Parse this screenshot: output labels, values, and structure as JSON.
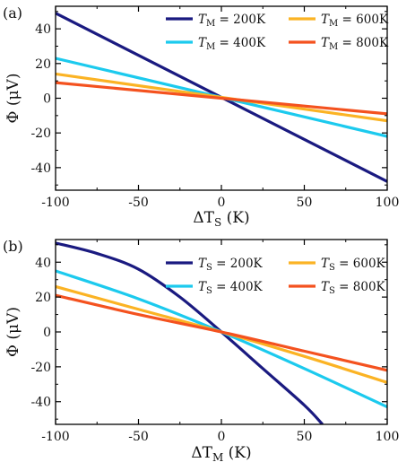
{
  "chart_data": [
    {
      "type": "line",
      "panel_label": "(a)",
      "xlabel": "ΔT_S (K)",
      "xlabel_main": "ΔT",
      "xlabel_sub": "S",
      "xlabel_unit": " (K)",
      "ylabel": "Φ (μV)",
      "ylabel_main": "Φ",
      "ylabel_unit": " (μV)",
      "xlim": [
        -100,
        100
      ],
      "ylim": [
        -53,
        53
      ],
      "xticks": [
        -100,
        -50,
        0,
        50,
        100
      ],
      "xtick_labels": [
        "-100",
        "-50",
        "0",
        "50",
        "100"
      ],
      "yticks": [
        -40,
        -20,
        0,
        20,
        40
      ],
      "ytick_labels": [
        "-40",
        "-20",
        "0",
        "20",
        "40"
      ],
      "grid": false,
      "legend_placement": "top-right",
      "series": [
        {
          "name": "T_M = 200K",
          "label_var": "T",
          "label_sub": "M",
          "label_val": "200K",
          "color": "#1a1a80",
          "x": [
            -100,
            100
          ],
          "y": [
            49,
            -48
          ]
        },
        {
          "name": "T_M = 400K",
          "label_var": "T",
          "label_sub": "M",
          "label_val": "400K",
          "color": "#1ccaee",
          "x": [
            -100,
            100
          ],
          "y": [
            23,
            -22
          ]
        },
        {
          "name": "T_M = 600K",
          "label_var": "T",
          "label_sub": "M",
          "label_val": "600K",
          "color": "#fbb324",
          "x": [
            -100,
            100
          ],
          "y": [
            14,
            -13
          ]
        },
        {
          "name": "T_M = 800K",
          "label_var": "T",
          "label_sub": "M",
          "label_val": "800K",
          "color": "#f4521f",
          "x": [
            -100,
            100
          ],
          "y": [
            9,
            -9
          ]
        }
      ]
    },
    {
      "type": "line",
      "panel_label": "(b)",
      "xlabel": "ΔT_M (K)",
      "xlabel_main": "ΔT",
      "xlabel_sub": "M",
      "xlabel_unit": " (K)",
      "ylabel": "Φ (μV)",
      "ylabel_main": "Φ",
      "ylabel_unit": " (μV)",
      "xlim": [
        -100,
        100
      ],
      "ylim": [
        -53,
        53
      ],
      "xticks": [
        -100,
        -50,
        0,
        50,
        100
      ],
      "xtick_labels": [
        "-100",
        "-50",
        "0",
        "50",
        "100"
      ],
      "yticks": [
        -40,
        -20,
        0,
        20,
        40
      ],
      "ytick_labels": [
        "-40",
        "-20",
        "0",
        "20",
        "40"
      ],
      "grid": false,
      "legend_placement": "top-right",
      "series": [
        {
          "name": "T_S = 200K",
          "label_var": "T",
          "label_sub": "S",
          "label_val": "200K",
          "color": "#1a1a80",
          "x": [
            -100,
            -75,
            -50,
            -25,
            0,
            25,
            50,
            61
          ],
          "y": [
            51,
            45,
            36,
            20,
            0,
            -21,
            -42,
            -53
          ]
        },
        {
          "name": "T_S = 400K",
          "label_var": "T",
          "label_sub": "S",
          "label_val": "400K",
          "color": "#1ccaee",
          "x": [
            -100,
            -50,
            0,
            50,
            100
          ],
          "y": [
            35,
            19,
            0,
            -21,
            -43
          ]
        },
        {
          "name": "T_S = 600K",
          "label_var": "T",
          "label_sub": "S",
          "label_val": "600K",
          "color": "#fbb324",
          "x": [
            -100,
            -50,
            0,
            50,
            100
          ],
          "y": [
            26,
            13,
            0,
            -14,
            -29
          ]
        },
        {
          "name": "T_S = 800K",
          "label_var": "T",
          "label_sub": "S",
          "label_val": "800K",
          "color": "#f4521f",
          "x": [
            -100,
            -50,
            0,
            50,
            100
          ],
          "y": [
            21,
            10,
            0,
            -11,
            -22
          ]
        }
      ]
    }
  ]
}
